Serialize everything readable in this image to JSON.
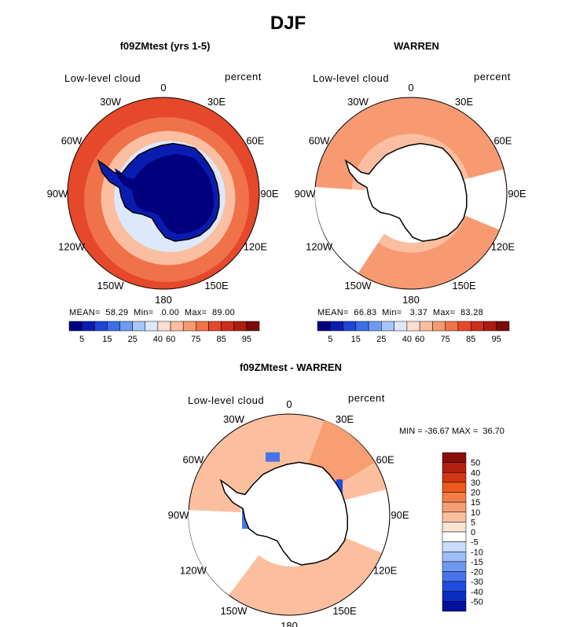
{
  "figure": {
    "title": "DJF"
  },
  "panels": [
    {
      "id": "model",
      "title": "f09ZMtest (yrs 1-5)",
      "field_label": "Low-level cloud",
      "units": "percent",
      "stats": {
        "mean": "58.29",
        "min": "0.00",
        "max": "89.00",
        "line": "MEAN=  58.29  Min=   0.00  Max=  89.00"
      },
      "colorbar": {
        "ticks": [
          "5",
          "15",
          "25",
          "40",
          "60",
          "75",
          "85",
          "95"
        ],
        "colors": [
          "#00007f",
          "#0a1cb0",
          "#1f45d6",
          "#3b6fe6",
          "#6e9af2",
          "#a7c6f9",
          "#dde8fb",
          "#fde0cf",
          "#fbbea0",
          "#f79a72",
          "#f07248",
          "#e5482a",
          "#cc2f1a",
          "#aa1d10",
          "#7a0b07"
        ]
      },
      "lon_labels": [
        "0",
        "30E",
        "60E",
        "90E",
        "120E",
        "150E",
        "180",
        "150W",
        "120W",
        "90W",
        "60W",
        "30W"
      ]
    },
    {
      "id": "obs",
      "title": "WARREN",
      "field_label": "Low-level cloud",
      "units": "percent",
      "stats": {
        "mean": "66.83",
        "min": "3.37",
        "max": "83.28",
        "line": "MEAN=  66.83  Min=   3.37  Max=  83.28"
      },
      "colorbar": {
        "ticks": [
          "5",
          "15",
          "25",
          "40",
          "60",
          "75",
          "85",
          "95"
        ],
        "colors": [
          "#00007f",
          "#0a1cb0",
          "#1f45d6",
          "#3b6fe6",
          "#6e9af2",
          "#a7c6f9",
          "#dde8fb",
          "#fde0cf",
          "#fbbea0",
          "#f79a72",
          "#f07248",
          "#e5482a",
          "#cc2f1a",
          "#aa1d10",
          "#7a0b07"
        ]
      },
      "lon_labels": [
        "0",
        "30E",
        "60E",
        "90E",
        "120E",
        "150E",
        "180",
        "150W",
        "120W",
        "90W",
        "60W",
        "30W"
      ]
    },
    {
      "id": "diff",
      "title": "f09ZMtest - WARREN",
      "field_label": "Low-level cloud",
      "units": "percent",
      "minmax": {
        "min": "-36.67",
        "max": "36.70",
        "line": "MIN = -36.67 MAX =  36.70"
      },
      "colorbar": {
        "ticks": [
          "50",
          "40",
          "30",
          "20",
          "15",
          "10",
          "5",
          "0",
          "-5",
          "-10",
          "-15",
          "-20",
          "-30",
          "-40",
          "-50"
        ],
        "colors": [
          "#8a0d0a",
          "#b3200f",
          "#d33614",
          "#ee5a1e",
          "#f47c46",
          "#f79e72",
          "#fbbf9f",
          "#fde3d2",
          "#ffffff",
          "#c9dcfb",
          "#9dbdf6",
          "#6f97ee",
          "#4673ea",
          "#1f4ddf",
          "#0a2dc4",
          "#03109a"
        ]
      },
      "lon_labels": [
        "0",
        "30E",
        "60E",
        "90E",
        "120E",
        "150E",
        "180",
        "150W",
        "120W",
        "90W",
        "60W",
        "30W"
      ]
    }
  ]
}
